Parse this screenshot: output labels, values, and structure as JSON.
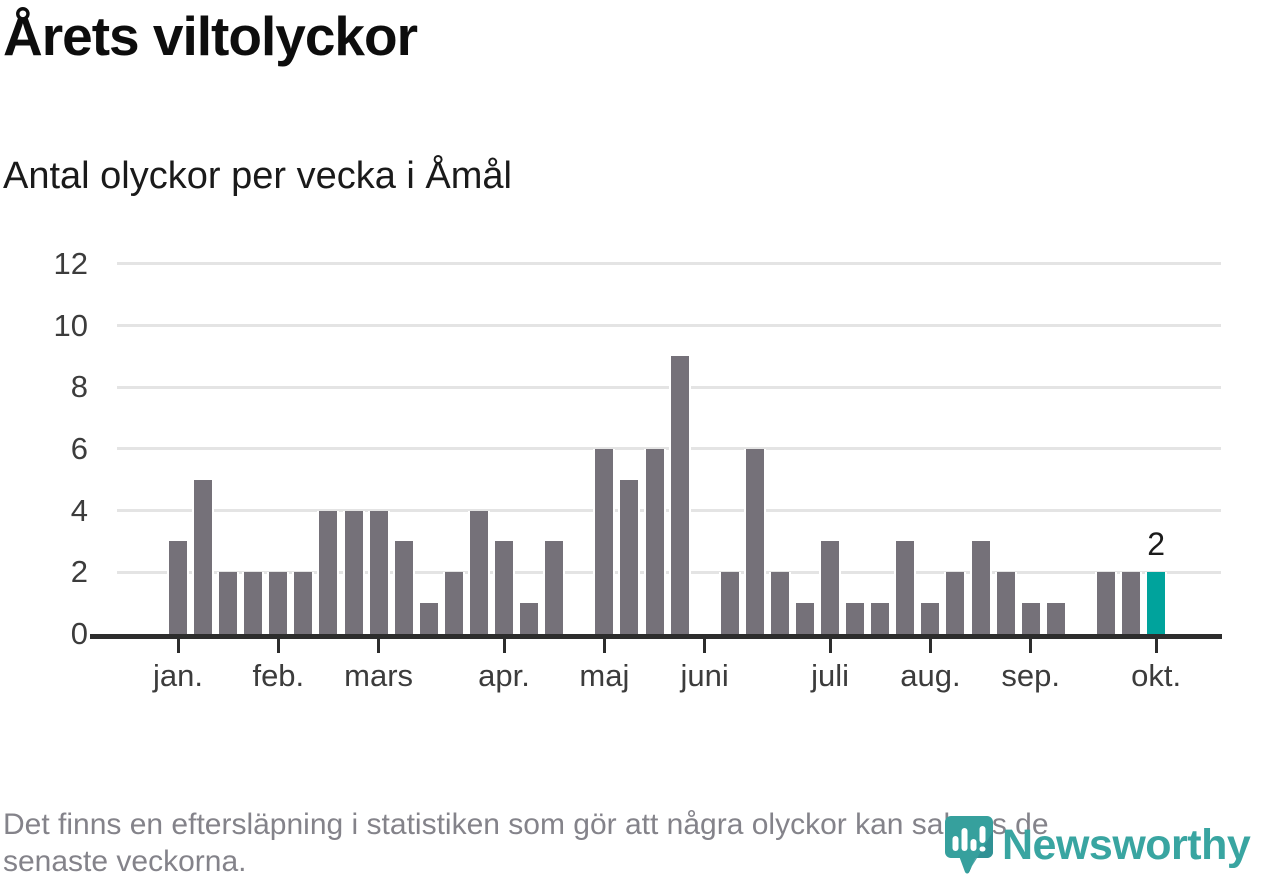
{
  "header": {
    "title": "Årets viltolyckor",
    "subtitle": "Antal olyckor per vecka i Åmål"
  },
  "chart_data": {
    "type": "bar",
    "title": "Årets viltolyckor",
    "subtitle": "Antal olyckor per vecka i Åmål",
    "x_description": "vecka 1–40 (januari–oktober)",
    "x": [
      1,
      2,
      3,
      4,
      5,
      6,
      7,
      8,
      9,
      10,
      11,
      12,
      13,
      14,
      15,
      16,
      17,
      18,
      19,
      20,
      21,
      22,
      23,
      24,
      25,
      26,
      27,
      28,
      29,
      30,
      31,
      32,
      33,
      34,
      35,
      36,
      37,
      38,
      39,
      40
    ],
    "values": [
      3,
      5,
      2,
      2,
      2,
      2,
      4,
      4,
      4,
      3,
      1,
      2,
      4,
      3,
      1,
      3,
      0,
      6,
      5,
      6,
      9,
      0,
      2,
      6,
      2,
      1,
      3,
      1,
      1,
      3,
      1,
      2,
      3,
      2,
      1,
      1,
      0,
      2,
      2,
      2
    ],
    "months": [
      {
        "label": "jan.",
        "week_index": 0
      },
      {
        "label": "feb.",
        "week_index": 4
      },
      {
        "label": "mars",
        "week_index": 8
      },
      {
        "label": "apr.",
        "week_index": 13
      },
      {
        "label": "maj",
        "week_index": 17
      },
      {
        "label": "juni",
        "week_index": 21
      },
      {
        "label": "juli",
        "week_index": 26
      },
      {
        "label": "aug.",
        "week_index": 30
      },
      {
        "label": "sep.",
        "week_index": 34
      },
      {
        "label": "okt.",
        "week_index": 39
      }
    ],
    "yticks": [
      0,
      2,
      4,
      6,
      8,
      10,
      12
    ],
    "ylim": [
      0,
      12
    ],
    "grid": true,
    "legend": "none",
    "highlight": {
      "week_index": 39,
      "label": "2"
    },
    "colors": {
      "bar": "#757179",
      "highlight_bar": "#00a39c",
      "gridline": "#e4e4e4",
      "axis": "#2d2d2d",
      "tick_text": "#3c3c3c",
      "annotation_text": "#1b1b1b"
    }
  },
  "footer": {
    "line1": "Det finns en eftersläpning i statistiken som gör att några olyckor kan saknas de",
    "line2": "senaste veckorna."
  },
  "logo": {
    "wordmark": "Newsworthy",
    "icon": "newsworthy-pin-icon",
    "brand_color": "#39a5a1"
  }
}
